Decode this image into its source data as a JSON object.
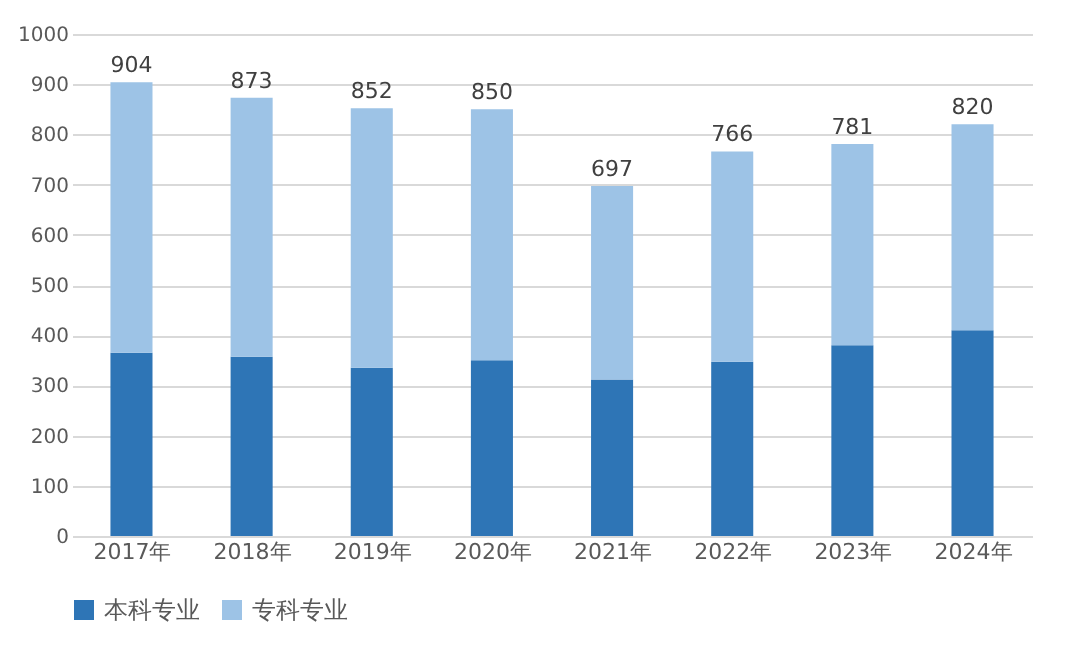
{
  "chart_data": {
    "type": "bar",
    "stacked": true,
    "categories": [
      "2017年",
      "2018年",
      "2019年",
      "2020年",
      "2021年",
      "2022年",
      "2023年",
      "2024年"
    ],
    "series": [
      {
        "name": "本科专业",
        "color": "#2e75b6",
        "values": [
          365,
          357,
          335,
          350,
          312,
          347,
          380,
          410
        ]
      },
      {
        "name": "专科专业",
        "color": "#9dc3e6",
        "values": [
          539,
          516,
          517,
          500,
          385,
          419,
          401,
          410
        ]
      }
    ],
    "totals": [
      "904",
      "873",
      "852",
      "850",
      "697",
      "766",
      "781",
      "820"
    ],
    "ylim": [
      0,
      1000
    ],
    "yticks": [
      0,
      100,
      200,
      300,
      400,
      500,
      600,
      700,
      800,
      900,
      1000
    ],
    "grid": "y",
    "legend": "bottom"
  }
}
